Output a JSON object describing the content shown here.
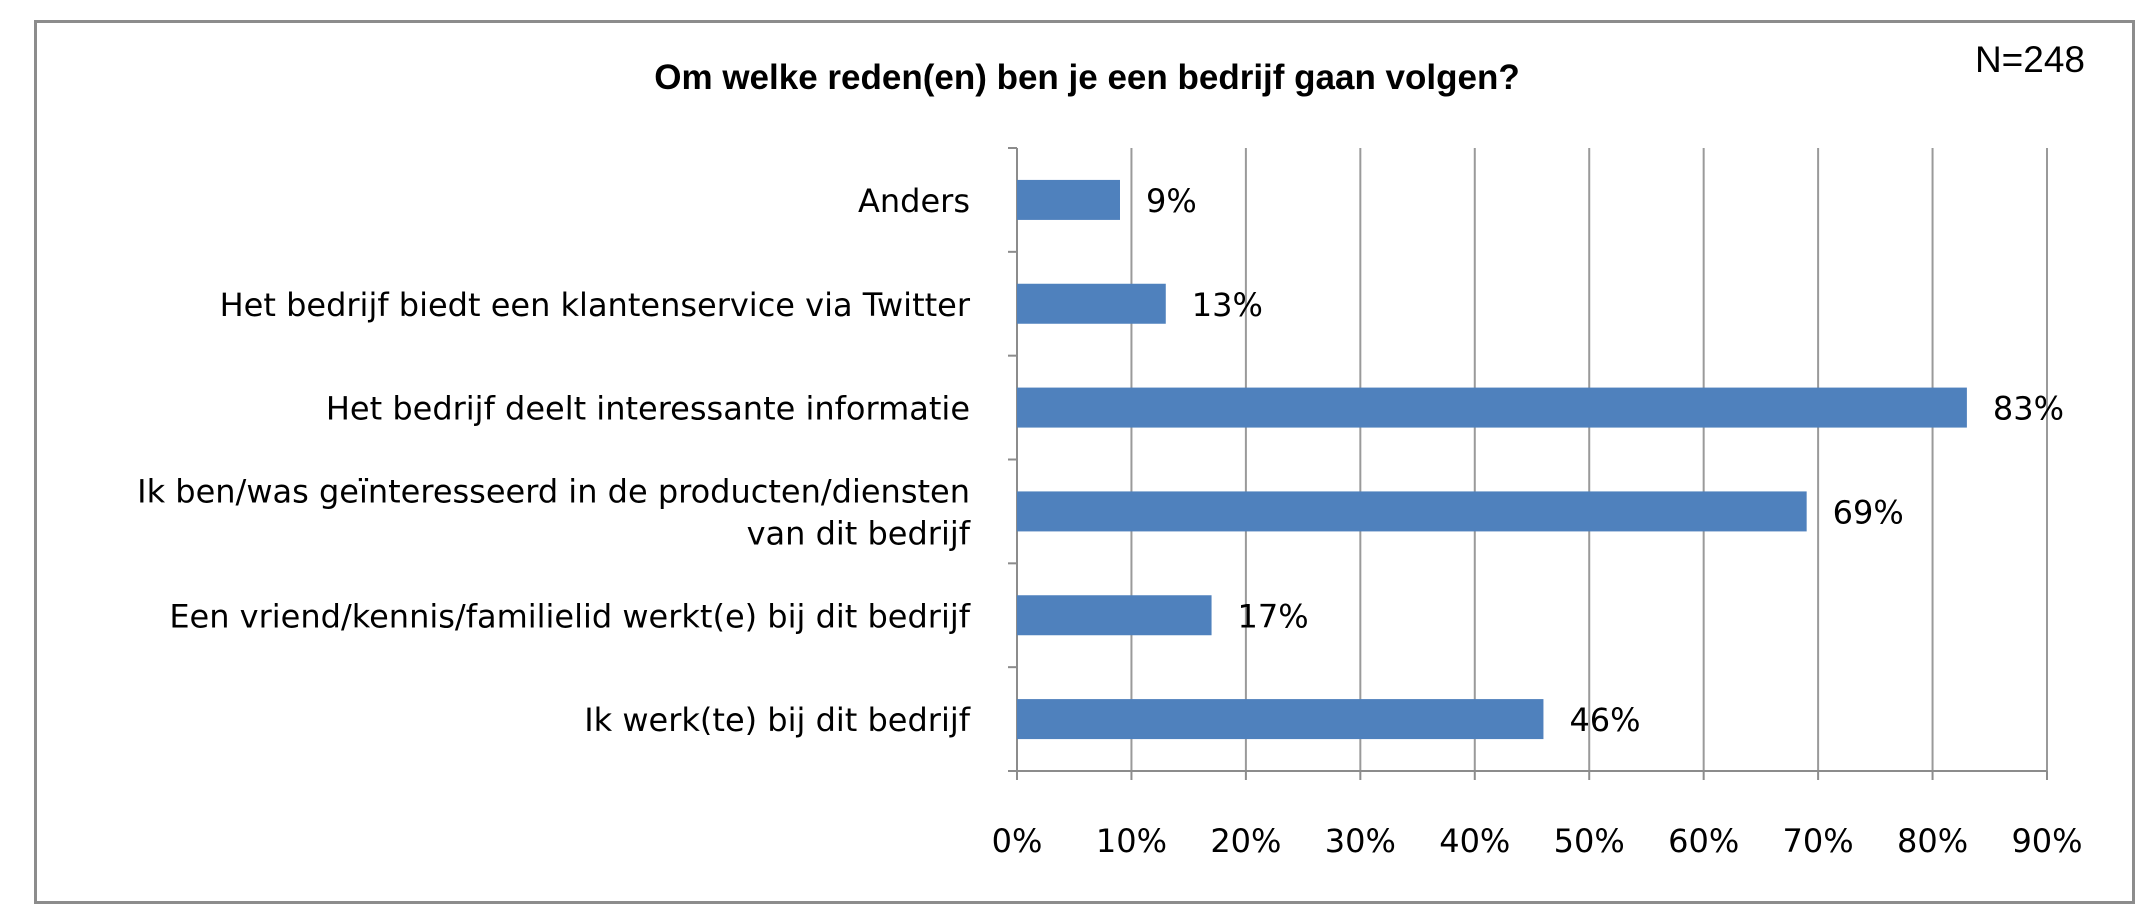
{
  "chart_data": {
    "type": "bar",
    "orientation": "horizontal",
    "title": "Om welke reden(en) ben je een bedrijf gaan volgen?",
    "note": "N=248",
    "categories": [
      [
        "Anders"
      ],
      [
        "Het bedrijf biedt een klantenservice via Twitter"
      ],
      [
        "Het bedrijf deelt interessante informatie"
      ],
      [
        "Ik ben/was geïnteresseerd in de producten/diensten",
        "van dit bedrijf"
      ],
      [
        "Een vriend/kennis/familielid werkt(e) bij dit bedrijf"
      ],
      [
        "Ik werk(te) bij dit bedrijf"
      ]
    ],
    "values": [
      9,
      13,
      83,
      69,
      17,
      46
    ],
    "data_labels": [
      "9%",
      "13%",
      "83%",
      "69%",
      "17%",
      "46%"
    ],
    "xlim": [
      0,
      90
    ],
    "xticks": [
      0,
      10,
      20,
      30,
      40,
      50,
      60,
      70,
      80,
      90
    ],
    "xtick_labels": [
      "0%",
      "10%",
      "20%",
      "30%",
      "40%",
      "50%",
      "60%",
      "70%",
      "80%",
      "90%"
    ],
    "grid": "vertical",
    "legend": "none",
    "colors": {
      "bar": "#4f81bd",
      "grid": "#9a9a9a",
      "axis": "#8c8c8c",
      "border": "#8c8c8c"
    }
  }
}
